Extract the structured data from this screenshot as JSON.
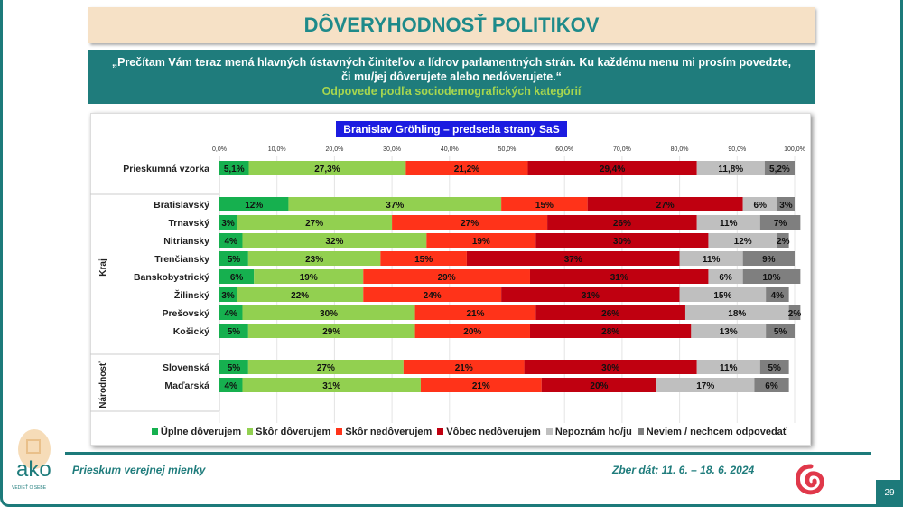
{
  "title": "DÔVERYHODNOSŤ POLITIKOV",
  "question": "„Prečítam Vám teraz mená hlavných ústavných činiteľov a lídrov parlamentných strán. Ku každému menu mi prosím povedzte, či mu/jej dôverujete alebo nedôverujete.“",
  "question_sub": "Odpovede podľa sociodemografických kategórií",
  "footer": {
    "left": "Prieskum verejnej mienky",
    "right": "Zber dát: 11. 6. – 18. 6. 2024",
    "page": "29",
    "logo_text": "ako",
    "logo_tagline": "VEDIEŤ O SEBE"
  },
  "chart_data": {
    "type": "bar",
    "stacked": true,
    "orientation": "horizontal",
    "title": "Branislav Gröhling – predseda strany SaS",
    "xlim": [
      0,
      100
    ],
    "xticks": [
      "0,0%",
      "10,0%",
      "20,0%",
      "30,0%",
      "40,0%",
      "50,0%",
      "60,0%",
      "70,0%",
      "80,0%",
      "90,0%",
      "100,0%"
    ],
    "legend_position": "bottom",
    "series": [
      {
        "name": "Úplne dôverujem",
        "color": "#16b04f"
      },
      {
        "name": "Skôr dôverujem",
        "color": "#92d050"
      },
      {
        "name": "Skôr nedôverujem",
        "color": "#ff3319"
      },
      {
        "name": "Vôbec nedôverujem",
        "color": "#c00010"
      },
      {
        "name": "Nepoznám ho/ju",
        "color": "#bfbfbf"
      },
      {
        "name": "Neviem / nechcem odpovedať",
        "color": "#7f7f7f"
      }
    ],
    "groups": [
      {
        "label": "",
        "rows": [
          {
            "label": "Prieskumná vzorka",
            "values": [
              5.1,
              27.3,
              21.2,
              29.4,
              11.8,
              5.2
            ],
            "labels": [
              "5,1%",
              "27,3%",
              "21,2%",
              "29,4%",
              "11,8%",
              "5,2%"
            ]
          }
        ]
      },
      {
        "label": "Kraj",
        "rows": [
          {
            "label": "Bratislavský",
            "values": [
              12,
              37,
              15,
              27,
              6,
              3
            ]
          },
          {
            "label": "Trnavský",
            "values": [
              3,
              27,
              27,
              26,
              11,
              7
            ]
          },
          {
            "label": "Nitriansky",
            "values": [
              4,
              32,
              19,
              30,
              12,
              2
            ]
          },
          {
            "label": "Trenčiansky",
            "values": [
              5,
              23,
              15,
              37,
              11,
              9
            ]
          },
          {
            "label": "Banskobystrický",
            "values": [
              6,
              19,
              29,
              31,
              6,
              10
            ]
          },
          {
            "label": "Žilinský",
            "values": [
              3,
              22,
              24,
              31,
              15,
              4
            ]
          },
          {
            "label": "Prešovský",
            "values": [
              4,
              30,
              21,
              26,
              18,
              2
            ]
          },
          {
            "label": "Košický",
            "values": [
              5,
              29,
              20,
              28,
              13,
              5
            ]
          }
        ]
      },
      {
        "label": "Národnosť",
        "rows": [
          {
            "label": "Slovenská",
            "values": [
              5,
              27,
              21,
              30,
              11,
              5
            ]
          },
          {
            "label": "Maďarská",
            "values": [
              4,
              31,
              21,
              20,
              17,
              6
            ]
          }
        ]
      }
    ]
  }
}
